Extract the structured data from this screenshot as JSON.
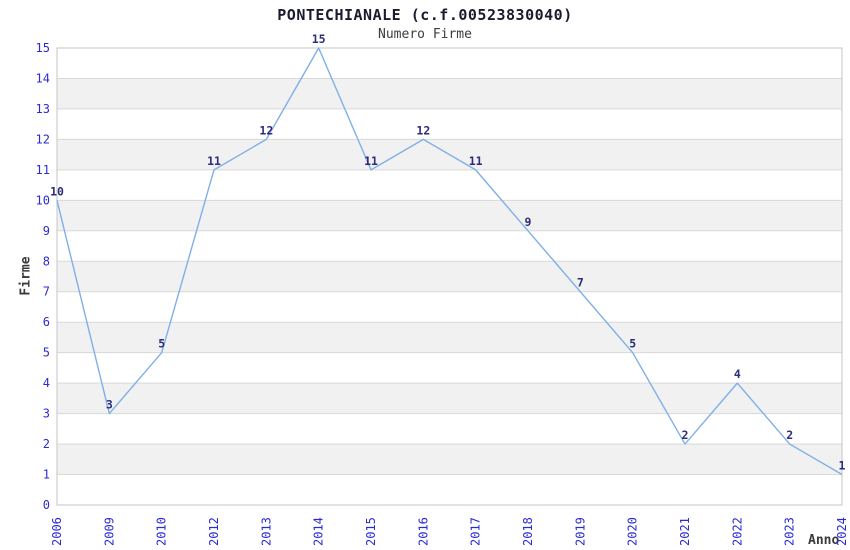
{
  "chart_data": {
    "type": "line",
    "title": "PONTECHIANALE (c.f.00523830040)",
    "subtitle": "Numero Firme",
    "xlabel": "Anno",
    "ylabel": "Firme",
    "categories": [
      "2006",
      "2009",
      "2010",
      "2012",
      "2013",
      "2014",
      "2015",
      "2016",
      "2017",
      "2018",
      "2019",
      "2020",
      "2021",
      "2022",
      "2023",
      "2024"
    ],
    "values": [
      10,
      3,
      5,
      11,
      12,
      15,
      11,
      12,
      11,
      9,
      7,
      5,
      2,
      4,
      2,
      1
    ],
    "ylim": [
      0,
      15
    ],
    "y_ticks": [
      0,
      1,
      2,
      3,
      4,
      5,
      6,
      7,
      8,
      9,
      10,
      11,
      12,
      13,
      14,
      15
    ],
    "grid": "horizontal",
    "legend": "none",
    "show_point_labels": true,
    "colors": {
      "line": "#7fb0e6",
      "data_label": "#2c2c7c",
      "tick_label": "#2b2bd4",
      "band": "#f1f1f1",
      "gridline": "#d9d9d9",
      "border": "#c6c6c6",
      "title": "#1b1b2f",
      "subtitle": "#3c3c3c",
      "axis_label": "#3a3a3a"
    }
  }
}
